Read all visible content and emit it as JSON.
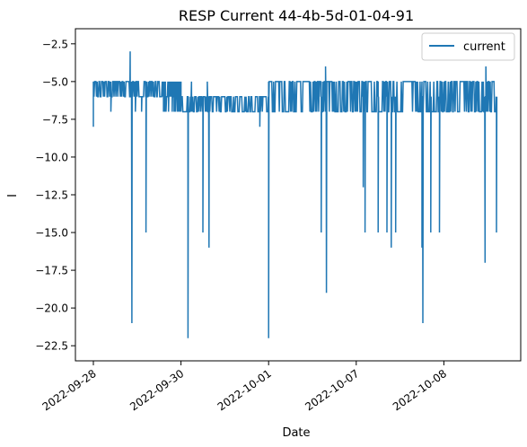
{
  "chart_data": {
    "type": "line",
    "title": "RESP Current 44-4b-5d-01-04-91",
    "xlabel": "Date",
    "ylabel": "I",
    "ylim": [
      -23.5,
      -1.5
    ],
    "yticks": [
      -2.5,
      -5.0,
      -7.5,
      -10.0,
      -12.5,
      -15.0,
      -17.5,
      -20.0,
      -22.5
    ],
    "ytick_labels": [
      "−2.5",
      "−5.0",
      "−7.5",
      "−10.0",
      "−12.5",
      "−15.0",
      "−17.5",
      "−20.0",
      "−22.5"
    ],
    "xticks": [
      "2022-09-28",
      "2022-09-30",
      "2022-10-01",
      "2022-10-07",
      "2022-10-08"
    ],
    "legend_position": "top-right",
    "grid": false,
    "series": [
      {
        "name": "current",
        "color": "#1f77b4",
        "segments": [
          {
            "x": [
              0.0,
              1.0,
              0.0
            ],
            "base": -6,
            "band": [
              -5,
              -6
            ],
            "start": -8,
            "spikes": [
              [
                0.2,
                -7
              ],
              [
                0.48,
                -7
              ]
            ]
          },
          {
            "x": [
              0.0,
              0.8
            ],
            "spikes": [
              [
                0.42,
                -3
              ],
              [
                0.44,
                -21
              ],
              [
                0.55,
                -7
              ],
              [
                0.6,
                -15
              ]
            ]
          },
          {
            "x": [
              0.8,
              1.0
            ],
            "base": -7,
            "band": [
              -6,
              -7
            ],
            "spikes": [
              [
                1.08,
                -22
              ],
              [
                1.12,
                -5
              ],
              [
                1.3,
                -5
              ],
              [
                1.25,
                -15
              ],
              [
                1.32,
                -16
              ]
            ]
          },
          {
            "x": [
              1.0,
              2.0
            ],
            "base": -6,
            "band": [
              -6,
              -7
            ],
            "spikes": [
              [
                1.9,
                -8
              ],
              [
                2.0,
                -22
              ]
            ]
          },
          {
            "x": [
              2.0,
              3.0
            ],
            "base": -6,
            "band": [
              -5,
              -7
            ],
            "spikes": [
              [
                2.6,
                -15
              ],
              [
                2.65,
                -4
              ],
              [
                2.66,
                -19
              ]
            ]
          },
          {
            "x": [
              3.0,
              4.0
            ],
            "base": -6,
            "band": [
              -5,
              -7
            ],
            "spikes": [
              [
                3.08,
                -12
              ],
              [
                3.1,
                -15
              ],
              [
                3.25,
                -15
              ],
              [
                3.35,
                -15
              ],
              [
                3.4,
                -16
              ],
              [
                3.45,
                -15
              ],
              [
                3.75,
                -16
              ],
              [
                3.76,
                -21
              ],
              [
                3.85,
                -15
              ],
              [
                3.95,
                -15
              ]
            ]
          },
          {
            "x": [
              4.0,
              4.6
            ],
            "base": -6,
            "band": [
              -5,
              -7
            ],
            "spikes": [
              [
                4.47,
                -17
              ],
              [
                4.48,
                -4
              ],
              [
                4.6,
                -15
              ]
            ]
          }
        ]
      }
    ]
  }
}
